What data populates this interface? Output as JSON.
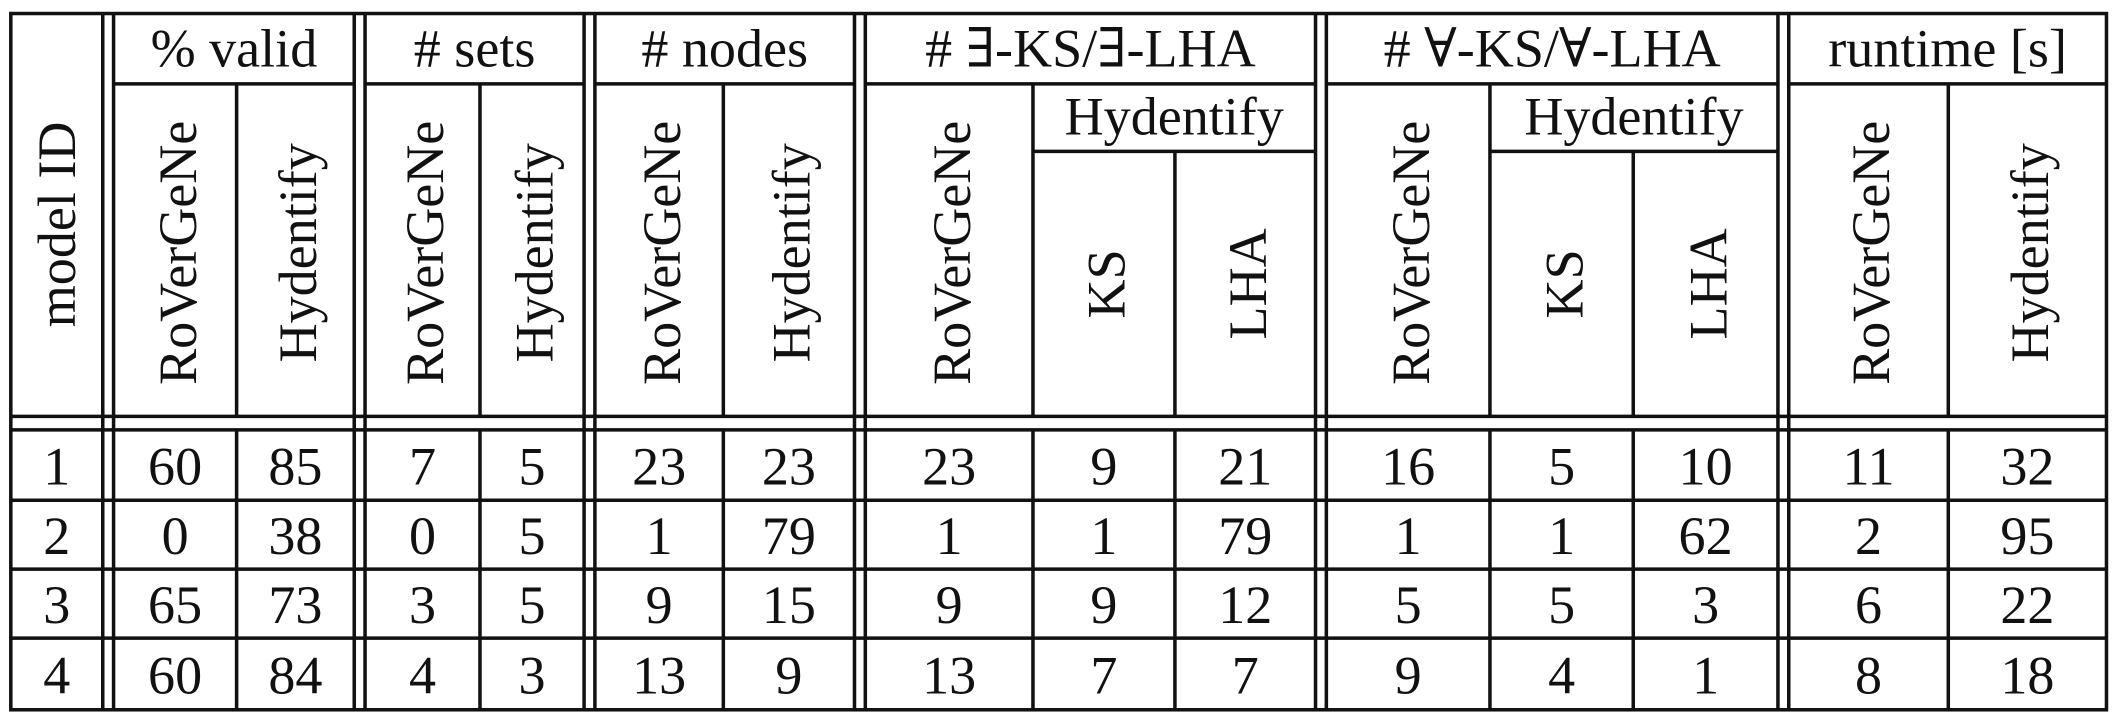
{
  "table": {
    "row_header": "model ID",
    "groups": [
      {
        "label": "% valid",
        "columns": [
          "RoVerGeNe",
          "Hydentify"
        ]
      },
      {
        "label": "# sets",
        "columns": [
          "RoVerGeNe",
          "Hydentify"
        ]
      },
      {
        "label": "# nodes",
        "columns": [
          "RoVerGeNe",
          "Hydentify"
        ]
      },
      {
        "label": "# ∃-KS/∃-LHA",
        "columns": [
          "RoVerGeNe"
        ],
        "subgroup": {
          "label": "Hydentify",
          "columns": [
            "KS",
            "LHA"
          ]
        }
      },
      {
        "label": "# ∀-KS/∀-LHA",
        "columns": [
          "RoVerGeNe"
        ],
        "subgroup": {
          "label": "Hydentify",
          "columns": [
            "KS",
            "LHA"
          ]
        }
      },
      {
        "label": "runtime [s]",
        "columns": [
          "RoVerGeNe",
          "Hydentify"
        ]
      }
    ],
    "rows": [
      {
        "id": 1,
        "values": [
          60,
          85,
          7,
          5,
          23,
          23,
          23,
          9,
          21,
          16,
          5,
          10,
          11,
          32
        ]
      },
      {
        "id": 2,
        "values": [
          0,
          38,
          0,
          5,
          1,
          79,
          1,
          1,
          79,
          1,
          1,
          62,
          2,
          95
        ]
      },
      {
        "id": 3,
        "values": [
          65,
          73,
          3,
          5,
          9,
          15,
          9,
          9,
          12,
          5,
          5,
          3,
          6,
          22
        ]
      },
      {
        "id": 4,
        "values": [
          60,
          84,
          4,
          3,
          13,
          9,
          13,
          7,
          7,
          9,
          4,
          1,
          8,
          18
        ]
      }
    ]
  }
}
